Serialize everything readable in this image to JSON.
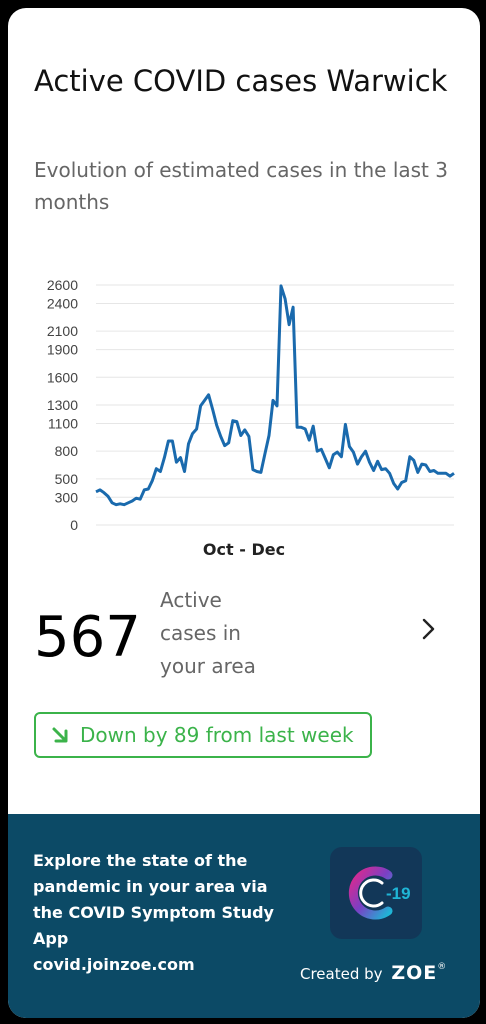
{
  "header": {
    "title": "Active COVID cases Warwick",
    "subtitle": "Evolution of estimated cases in the last 3 months"
  },
  "chart_data": {
    "type": "line",
    "xlabel": "Oct - Dec",
    "ylabel": "",
    "ylim": [
      0,
      2600
    ],
    "yticks": [
      0,
      300,
      500,
      800,
      1100,
      1300,
      1600,
      1900,
      2100,
      2400,
      2600
    ],
    "grid": true,
    "color": "#1a6aad",
    "series": [
      {
        "values": [
          360,
          380,
          350,
          310,
          240,
          220,
          230,
          220,
          240,
          260,
          290,
          280,
          380,
          390,
          480,
          610,
          580,
          730,
          910,
          910,
          680,
          730,
          580,
          880,
          990,
          1040,
          1290,
          1350,
          1410,
          1250,
          1080,
          960,
          860,
          890,
          1130,
          1120,
          970,
          1030,
          960,
          600,
          580,
          570,
          770,
          970,
          1350,
          1290,
          2590,
          2450,
          2170,
          2360,
          1060,
          1060,
          1040,
          920,
          1070,
          800,
          820,
          720,
          620,
          760,
          790,
          740,
          1090,
          850,
          790,
          660,
          740,
          800,
          680,
          590,
          690,
          600,
          610,
          560,
          450,
          390,
          460,
          480,
          740,
          700,
          570,
          660,
          650,
          580,
          590,
          560,
          560,
          560,
          530,
          560
        ]
      }
    ]
  },
  "stats": {
    "value": "567",
    "label_lines": [
      "Active",
      "cases in",
      "your area"
    ],
    "chevron": "chevron-right-icon"
  },
  "trend": {
    "text": "Down by 89 from last week",
    "icon": "arrow-down-right-icon",
    "color": "#3bb34a"
  },
  "footer": {
    "lines": [
      "Explore the state of the",
      "pandemic in your area via",
      "the COVID Symptom Study",
      "App",
      "covid.joinzoe.com"
    ],
    "app_icon": "covid-symptom-study-app-icon",
    "app_icon_text": "-19",
    "created_by": "Created by",
    "brand": "ZOE",
    "reg": "®"
  },
  "colors": {
    "footer_bg": "#0c4a66",
    "accent_green": "#3bb34a",
    "line_blue": "#1a6aad"
  }
}
